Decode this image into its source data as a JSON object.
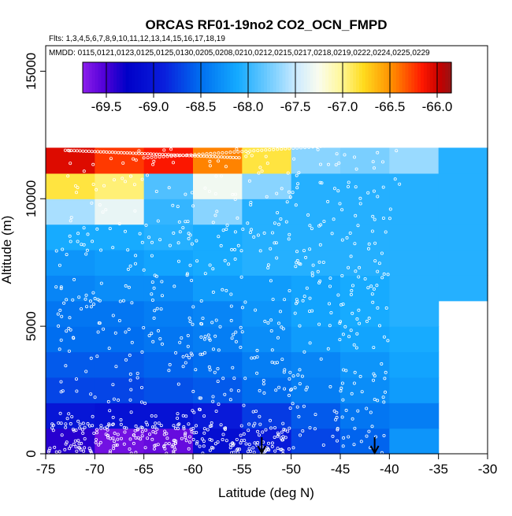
{
  "chart_data": {
    "type": "heatmap",
    "title": "ORCAS RF01-19no2 CO2_OCN_FMPD",
    "flights_line": "Flts: 1,3,4,5,6,7,8,9,10,11,12,13,14,15,16,17,18,19",
    "dates_line": "MMDD: 0115,0121,0123,0125,0125,0130,0205,0208,0210,0212,0215,0217,0218,0219,0222,0224,0225,0229",
    "xlabel": "Latitude (deg N)",
    "ylabel": "Altitude (m)",
    "xlim": [
      -75,
      -30
    ],
    "ylim": [
      0,
      16000
    ],
    "x_ticks": [
      -75,
      -70,
      -65,
      -60,
      -55,
      -50,
      -45,
      -40,
      -35,
      -30
    ],
    "y_ticks": [
      0,
      5000,
      10000,
      15000
    ],
    "y_tick_labels": [
      "0",
      "5000",
      "10000",
      "15000"
    ],
    "colorbar": {
      "min": -69.75,
      "max": -65.85,
      "ticks": [
        -69.5,
        -69.0,
        -68.5,
        -68.0,
        -67.5,
        -67.0,
        -66.5,
        -66.0
      ],
      "tick_labels": [
        "-69.5",
        "-69.0",
        "-68.5",
        "-68.0",
        "-67.5",
        "-67.0",
        "-66.5",
        "-66.0"
      ]
    },
    "lat_edges": [
      -75,
      -70,
      -65,
      -60,
      -55,
      -50,
      -45,
      -40,
      -35,
      -30
    ],
    "alt_edges": [
      0,
      1000,
      2000,
      3000,
      4000,
      5000,
      6000,
      7000,
      8000,
      9000,
      10000,
      11000,
      12000
    ],
    "cells": [
      [
        -69.4,
        -69.65,
        -69.6,
        -69.1,
        -68.95,
        -68.7,
        -68.55,
        -68.25,
        null
      ],
      [
        -69.0,
        -69.05,
        -69.05,
        -68.95,
        -68.75,
        -68.6,
        -68.45,
        -68.4,
        null
      ],
      [
        -68.7,
        -68.7,
        -68.65,
        -68.6,
        -68.5,
        -68.4,
        -68.3,
        -68.2,
        null
      ],
      [
        -68.6,
        -68.6,
        -68.55,
        -68.5,
        -68.4,
        -68.35,
        -68.25,
        -68.15,
        null
      ],
      [
        -68.5,
        -68.5,
        -68.45,
        -68.4,
        -68.3,
        -68.2,
        -68.15,
        -68.1,
        null
      ],
      [
        -68.45,
        -68.45,
        -68.4,
        -68.35,
        -68.25,
        -68.15,
        -68.1,
        -68.05,
        null
      ],
      [
        -68.35,
        -68.3,
        -68.3,
        -68.2,
        -68.2,
        -68.15,
        -68.1,
        -68.05,
        -68.05
      ],
      [
        -68.25,
        -68.2,
        -68.15,
        -68.1,
        -68.05,
        -68.05,
        -68.05,
        -68.05,
        -68.05
      ],
      [
        -68.1,
        -68.1,
        -68.05,
        -68.1,
        -68.05,
        -68.05,
        -68.05,
        -68.05,
        -68.05
      ],
      [
        -67.6,
        -67.35,
        -68.0,
        -67.7,
        -68.05,
        -68.05,
        -68.05,
        -68.05,
        -68.05
      ],
      [
        -66.85,
        -66.95,
        -67.9,
        -67.3,
        -67.7,
        -68.05,
        -68.05,
        -68.05,
        -68.05
      ],
      [
        -66.05,
        -66.25,
        -66.15,
        -66.45,
        -66.85,
        -67.7,
        -67.75,
        -67.65,
        -68.05
      ]
    ],
    "arrow_markers_lat": [
      -53,
      -41.5
    ],
    "grid": false,
    "legend": "colorbar top"
  }
}
